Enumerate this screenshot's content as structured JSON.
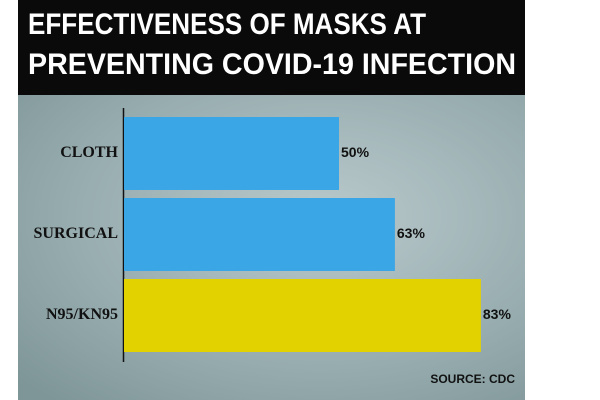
{
  "chart_data": {
    "type": "bar",
    "orientation": "horizontal",
    "title": [
      "EFFECTIVENESS OF MASKS AT",
      "PREVENTING COVID-19 INFECTION"
    ],
    "categories": [
      "CLOTH",
      "SURGICAL",
      "N95/KN95"
    ],
    "values": [
      50,
      63,
      83
    ],
    "value_labels": [
      "50%",
      "63%",
      "83%"
    ],
    "colors": [
      "#3aa6e6",
      "#3aa6e6",
      "#e2d200"
    ],
    "xlim": [
      0,
      100
    ],
    "source": "SOURCE: CDC"
  }
}
